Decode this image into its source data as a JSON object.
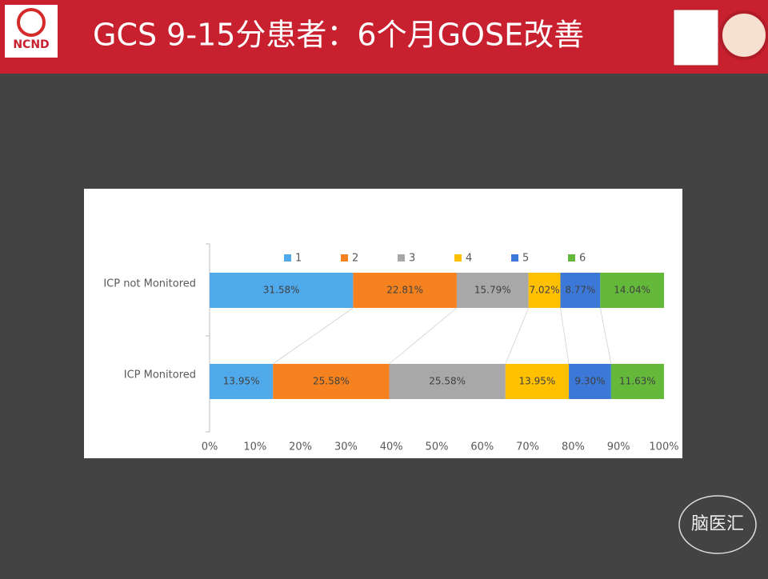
{
  "slide": {
    "title": "GCS 9-15分患者：6个月GOSE改善",
    "logo": "NCND",
    "watermark": "脑医汇"
  },
  "chart_data": {
    "type": "stacked_bar",
    "orientation": "horizontal",
    "categories": [
      "ICP not Monitored",
      "ICP Monitored"
    ],
    "series": [
      {
        "name": "1",
        "color": "#4fa9ea",
        "values": [
          31.58,
          13.95
        ],
        "value_labels": [
          "31.58%",
          "13.95%"
        ]
      },
      {
        "name": "2",
        "color": "#f5821f",
        "values": [
          22.81,
          25.58
        ],
        "value_labels": [
          "22.81%",
          "25.58%"
        ]
      },
      {
        "name": "3",
        "color": "#a8a8a8",
        "values": [
          15.79,
          25.58
        ],
        "value_labels": [
          "15.79%",
          "25.58%"
        ]
      },
      {
        "name": "4",
        "color": "#ffc000",
        "values": [
          7.02,
          13.95
        ],
        "value_labels": [
          "7.02%",
          "13.95%"
        ]
      },
      {
        "name": "5",
        "color": "#3b78d8",
        "values": [
          8.77,
          9.3
        ],
        "value_labels": [
          "8.77%",
          "9.30%"
        ]
      },
      {
        "name": "6",
        "color": "#64b93b",
        "values": [
          14.04,
          11.63
        ],
        "value_labels": [
          "14.04%",
          "11.63%"
        ]
      }
    ],
    "xlim": [
      0,
      100
    ],
    "xticks": [
      {
        "value": 0,
        "label": "0%"
      },
      {
        "value": 10,
        "label": "10%"
      },
      {
        "value": 20,
        "label": "20%"
      },
      {
        "value": 30,
        "label": "30%"
      },
      {
        "value": 40,
        "label": "40%"
      },
      {
        "value": 50,
        "label": "50%"
      },
      {
        "value": 60,
        "label": "60%"
      },
      {
        "value": 70,
        "label": "70%"
      },
      {
        "value": 80,
        "label": "80%"
      },
      {
        "value": 90,
        "label": "90%"
      },
      {
        "value": 100,
        "label": "100%"
      }
    ],
    "legend": "top",
    "series_lines": true
  }
}
